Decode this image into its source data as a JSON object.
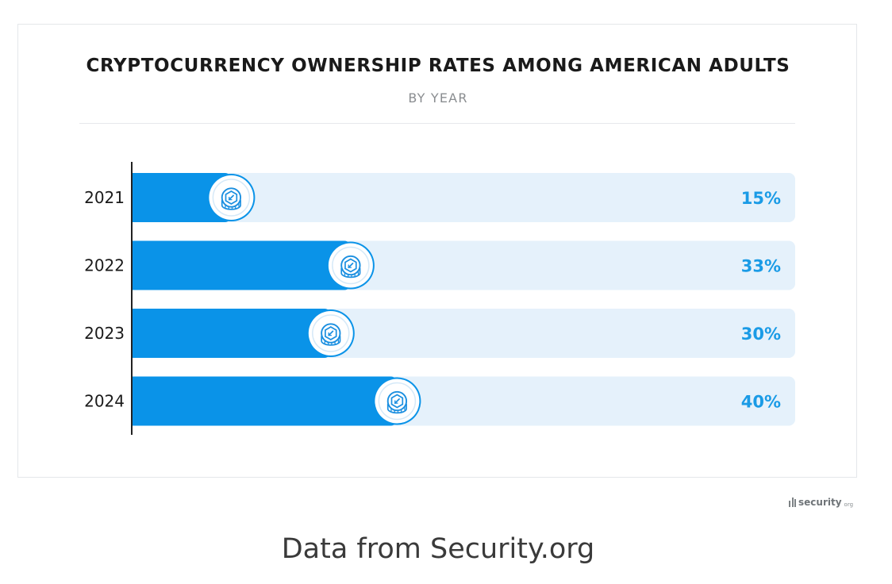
{
  "chart_data": {
    "type": "bar",
    "orientation": "horizontal",
    "title": "CRYPTOCURRENCY OWNERSHIP RATES AMONG AMERICAN ADULTS",
    "subtitle": "BY YEAR",
    "categories": [
      "2021",
      "2022",
      "2023",
      "2024"
    ],
    "values": [
      15,
      33,
      30,
      40
    ],
    "value_labels": [
      "15%",
      "33%",
      "30%",
      "40%"
    ],
    "xlim": [
      0,
      100
    ],
    "unit": "%",
    "marker_icon": "crypto-coin-icon",
    "colors": {
      "bar": "#0a93e8",
      "track": "#e5f1fb",
      "value_label": "#1a9be6",
      "axis": "#222222",
      "category_label": "#1a1a1a"
    }
  },
  "branding": {
    "logo_name": "security",
    "logo_tld": "org"
  },
  "caption": "Data from Security.org"
}
